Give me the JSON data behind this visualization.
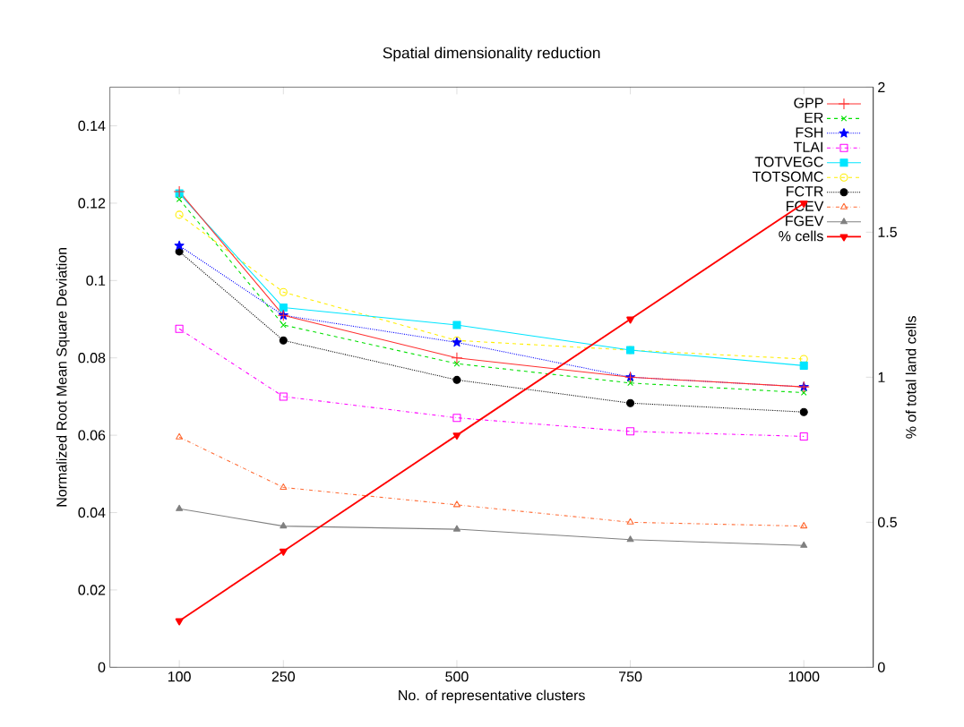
{
  "chart_data": {
    "type": "line",
    "title": "Spatial dimensionality reduction",
    "xlabel": "No. of representative clusters",
    "ylabel": "Normalized Root Mean Square Deviation",
    "y2label": "% of total land cells",
    "x": [
      100,
      250,
      500,
      750,
      1000
    ],
    "xlim": [
      0,
      1100
    ],
    "xticks": [
      100,
      250,
      500,
      750,
      1000
    ],
    "ylim": [
      0,
      0.15
    ],
    "yticks": [
      0,
      0.02,
      0.04,
      0.06,
      0.08,
      0.1,
      0.12,
      0.14
    ],
    "y2lim": [
      0,
      2
    ],
    "y2ticks": [
      0,
      0.5,
      1,
      1.5,
      2
    ],
    "legend": "top right",
    "series": [
      {
        "name": "GPP",
        "color": "#ff3030",
        "marker": "plus",
        "line_style": "solid",
        "values": [
          0.123,
          0.091,
          0.08,
          0.075,
          0.0725
        ]
      },
      {
        "name": "ER",
        "color": "#00e000",
        "marker": "cross",
        "line_style": "dashed",
        "values": [
          0.121,
          0.0885,
          0.0785,
          0.0735,
          0.071
        ]
      },
      {
        "name": "FSH",
        "color": "#0000ff",
        "marker": "star",
        "line_style": "dotted",
        "values": [
          0.109,
          0.091,
          0.084,
          0.075,
          0.0725
        ]
      },
      {
        "name": "TLAI",
        "color": "#ff00ff",
        "marker": "square",
        "line_style": "dashdotted",
        "values": [
          0.0875,
          0.07,
          0.0645,
          0.061,
          0.0597
        ]
      },
      {
        "name": "TOTVEGC",
        "color": "#00e5ff",
        "marker": "square*",
        "line_style": "solid",
        "values": [
          0.1225,
          0.093,
          0.0885,
          0.082,
          0.078
        ]
      },
      {
        "name": "TOTSOMC",
        "color": "#ffee00",
        "marker": "circle",
        "line_style": "dashed",
        "values": [
          0.117,
          0.097,
          0.0845,
          0.082,
          0.0797
        ]
      },
      {
        "name": "FCTR",
        "color": "#000000",
        "marker": "circle*",
        "line_style": "dotted",
        "values": [
          0.1075,
          0.0845,
          0.0743,
          0.0683,
          0.066
        ]
      },
      {
        "name": "FCEV",
        "color": "#ff6a33",
        "marker": "triangle",
        "line_style": "dashdotted",
        "values": [
          0.0595,
          0.0465,
          0.042,
          0.0375,
          0.0365
        ]
      },
      {
        "name": "FGEV",
        "color": "#808080",
        "marker": "triangle*",
        "line_style": "solid",
        "values": [
          0.041,
          0.0365,
          0.0357,
          0.033,
          0.0315
        ]
      },
      {
        "name": "% cells",
        "color": "#ff0000",
        "marker": "triangle-down*",
        "line_style": "solid",
        "axis": "y2",
        "values": [
          0.16,
          0.4,
          0.8,
          1.2,
          1.6
        ]
      }
    ]
  }
}
